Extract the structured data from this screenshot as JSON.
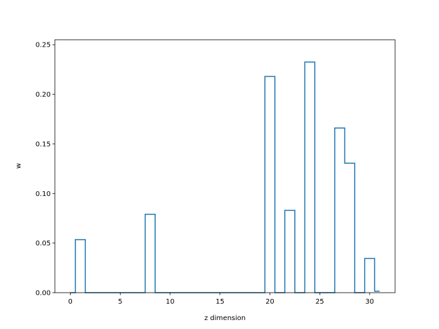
{
  "chart_data": {
    "type": "line",
    "style": "steps-mid",
    "title": "",
    "xlabel": "z dimension",
    "ylabel": "w",
    "xlim": [
      -1.55,
      32.55
    ],
    "ylim": [
      0,
      0.255
    ],
    "xticks": [
      0,
      5,
      10,
      15,
      20,
      25,
      30
    ],
    "yticks": [
      0.0,
      0.05,
      0.1,
      0.15,
      0.2,
      0.25
    ],
    "xtick_labels": [
      "0",
      "5",
      "10",
      "15",
      "20",
      "25",
      "30"
    ],
    "ytick_labels": [
      "0.00",
      "0.05",
      "0.10",
      "0.15",
      "0.20",
      "0.25"
    ],
    "grid": false,
    "color": "#1f77b4",
    "series": [
      {
        "x": [
          0,
          1,
          2,
          3,
          4,
          5,
          6,
          7,
          8,
          9,
          10,
          11,
          12,
          13,
          14,
          15,
          16,
          17,
          18,
          19,
          20,
          21,
          22,
          23,
          24,
          25,
          26,
          27,
          28,
          29,
          30,
          31
        ],
        "values": [
          0,
          0.0535,
          0,
          0,
          0,
          0,
          0,
          0,
          0.079,
          0,
          0,
          0,
          0,
          0,
          0,
          0,
          0,
          0,
          0,
          0,
          0.218,
          0,
          0.083,
          0,
          0.2325,
          0,
          0,
          0.166,
          0.1305,
          0,
          0.0345,
          0.0015
        ]
      }
    ]
  }
}
